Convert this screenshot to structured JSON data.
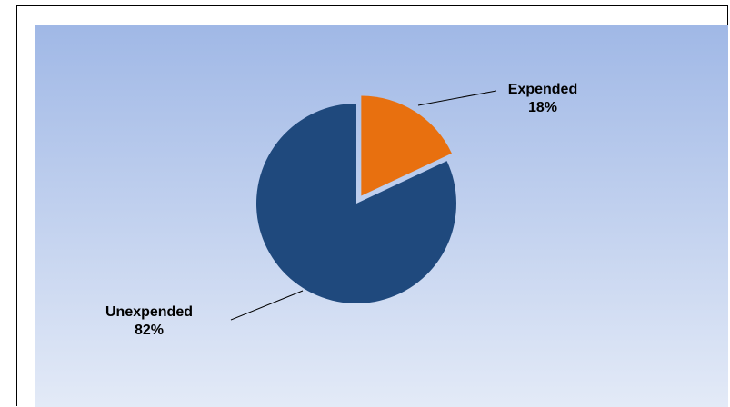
{
  "colors": {
    "background_top": "#a0b8e6",
    "background_bottom": "#e3eaf7",
    "leader_line": "#000000"
  },
  "chart_data": {
    "type": "pie",
    "title": "",
    "slices": [
      {
        "label": "Expended",
        "value": 18,
        "value_label": "18%",
        "color": "#e8700f",
        "exploded": true
      },
      {
        "label": "Unexpended",
        "value": 82,
        "value_label": "82%",
        "color": "#1f497d",
        "exploded": false
      }
    ],
    "start_angle": "12 o'clock",
    "direction": "clockwise",
    "legend": "none",
    "data_labels": "outside-with-leader-lines"
  }
}
